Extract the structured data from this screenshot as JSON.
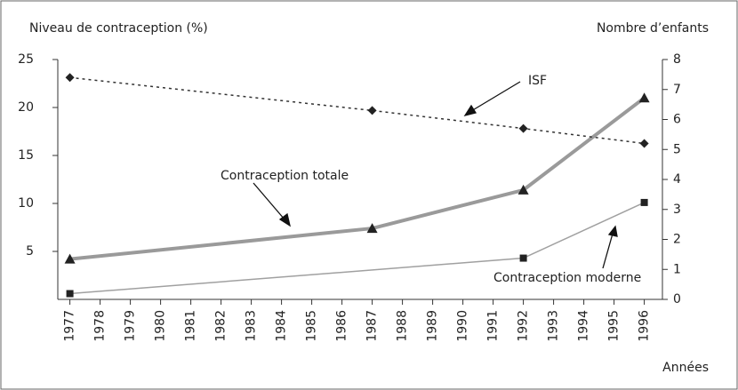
{
  "chart_data": {
    "type": "line",
    "ylabel": "Niveau de contraception (%)",
    "y2label": "Nombre d’enfants",
    "xlabel": "Années",
    "xlim": [
      1976.6,
      1996.6
    ],
    "xticks": [
      1977,
      1978,
      1979,
      1980,
      1981,
      1982,
      1983,
      1984,
      1985,
      1986,
      1987,
      1988,
      1989,
      1990,
      1991,
      1992,
      1993,
      1994,
      1995,
      1996
    ],
    "ylim": [
      0,
      25
    ],
    "yticks": [
      5,
      10,
      15,
      20,
      25
    ],
    "y2lim": [
      0,
      8
    ],
    "y2ticks": [
      0,
      1,
      2,
      3,
      4,
      5,
      6,
      7,
      8
    ],
    "series": [
      {
        "name": "Contraception totale",
        "color": "#9a9a9a",
        "marker": "triangle",
        "x": [
          1977,
          1987,
          1992,
          1996
        ],
        "values": [
          4.2,
          7.4,
          11.4,
          21
        ]
      },
      {
        "name": "Contraception moderne",
        "color": "#a0a0a0",
        "marker": "square",
        "x": [
          1977,
          1992,
          1996
        ],
        "values": [
          0.6,
          4.3,
          10.1
        ]
      },
      {
        "name": "ISF",
        "color": "#333333",
        "marker": "diamond",
        "axis": "y2",
        "x": [
          1977,
          1987,
          1992,
          1996
        ],
        "values": [
          7.4,
          6.3,
          5.7,
          5.2
        ]
      }
    ]
  }
}
